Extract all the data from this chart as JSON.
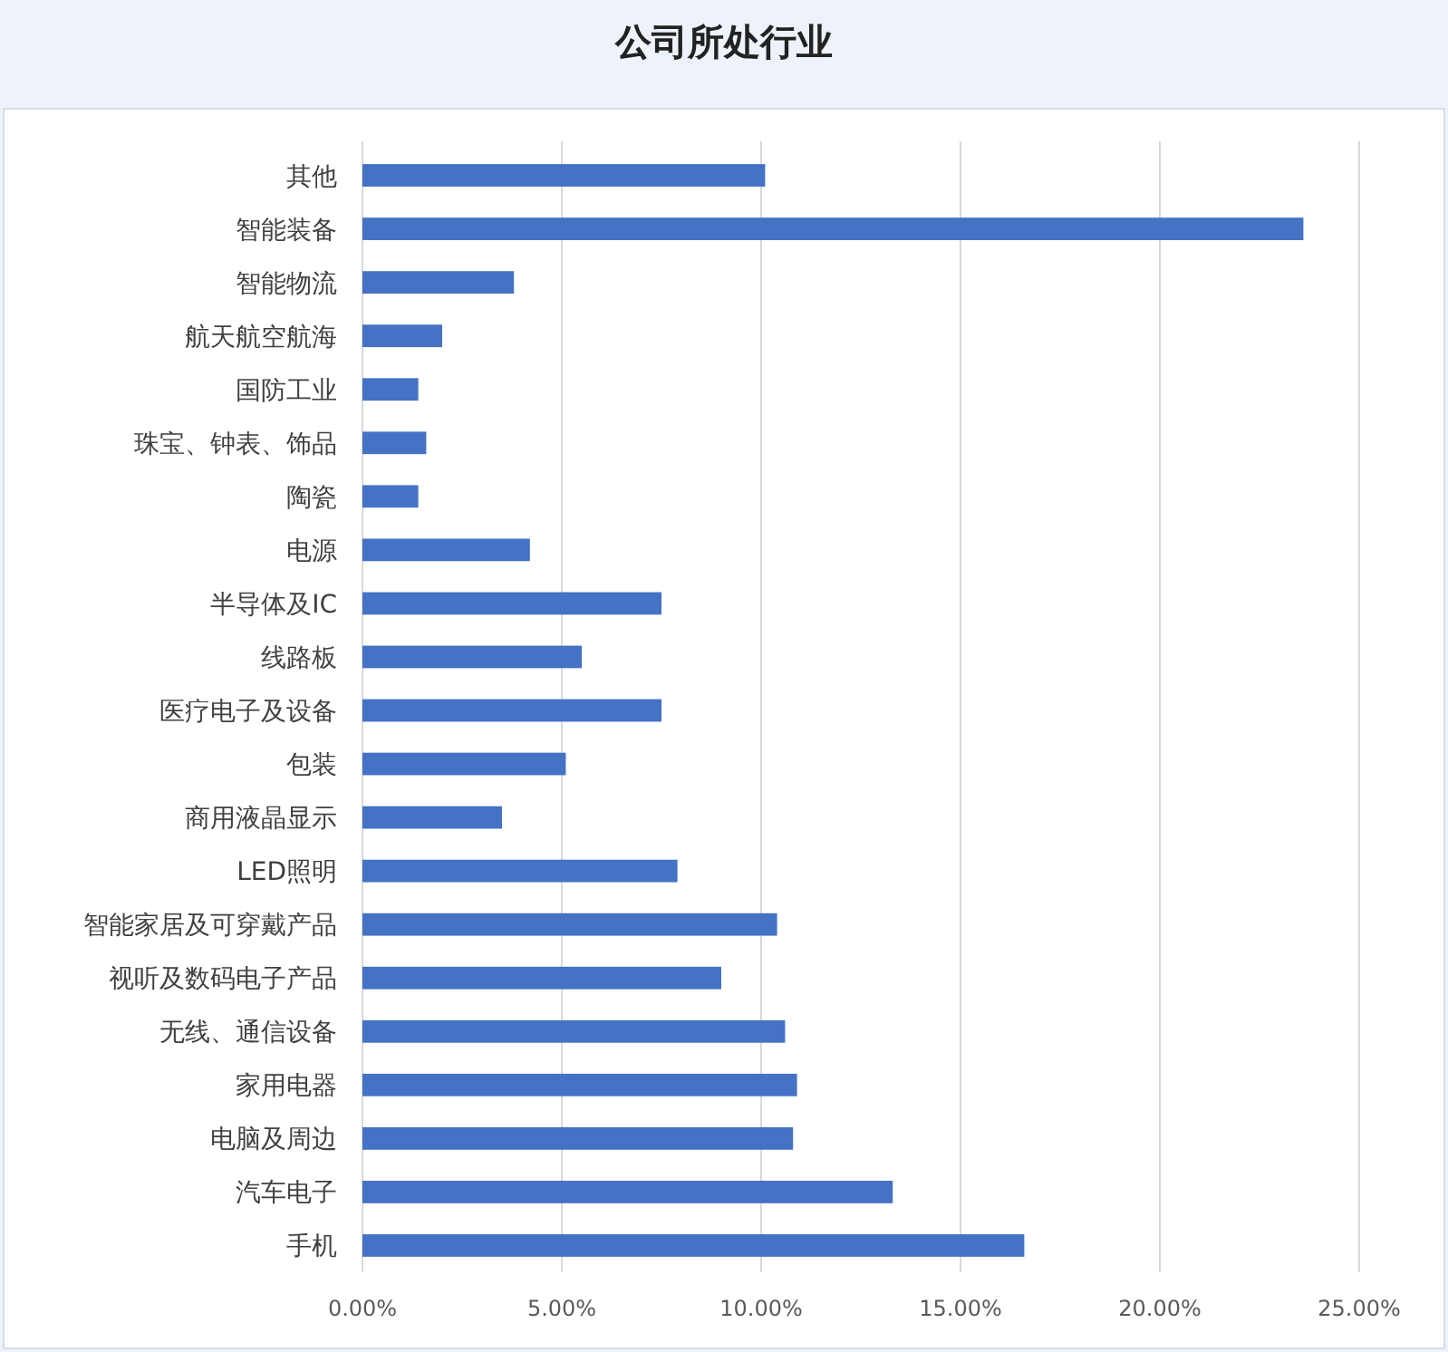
{
  "chart_data": {
    "type": "bar",
    "orientation": "horizontal",
    "title": "公司所处行业",
    "categories": [
      "其他",
      "智能装备",
      "智能物流",
      "航天航空航海",
      "国防工业",
      "珠宝、钟表、饰品",
      "陶瓷",
      "电源",
      "半导体及IC",
      "线路板",
      "医疗电子及设备",
      "包装",
      "商用液晶显示",
      "LED照明",
      "智能家居及可穿戴产品",
      "视听及数码电子产品",
      "无线、通信设备",
      "家用电器",
      "电脑及周边",
      "汽车电子",
      "手机"
    ],
    "values": [
      10.1,
      23.6,
      3.8,
      2.0,
      1.4,
      1.6,
      1.4,
      4.2,
      7.5,
      5.5,
      7.5,
      5.1,
      3.5,
      7.9,
      10.4,
      9.0,
      10.6,
      10.9,
      10.8,
      13.3,
      16.6
    ],
    "color": "#4472c4",
    "xlim": [
      0,
      25
    ],
    "xticks": [
      {
        "value": 0,
        "label": "0.00%"
      },
      {
        "value": 5,
        "label": "5.00%"
      },
      {
        "value": 10,
        "label": "10.00%"
      },
      {
        "value": 15,
        "label": "15.00%"
      },
      {
        "value": 20,
        "label": "20.00%"
      },
      {
        "value": 25,
        "label": "25.00%"
      }
    ],
    "grid": "x"
  }
}
